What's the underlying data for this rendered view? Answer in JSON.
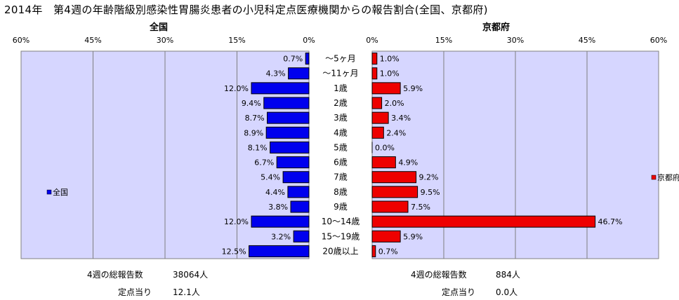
{
  "title": "2014年　第4週の年齢階級別感染性胃腸炎患者の小児科定点医療機関からの報告割合(全国、京都府)",
  "left_panel_title": "全国",
  "right_panel_title": "京都府",
  "colors": {
    "national": "#0000ee",
    "kyoto": "#ee0000",
    "plot_bg": "#d6d6ff",
    "grid": "#7f7f7f"
  },
  "chart_data": [
    {
      "type": "bar",
      "orientation": "horizontal",
      "direction": "right-to-left",
      "title": "全国",
      "series": [
        {
          "name": "全国",
          "values": [
            0.7,
            4.3,
            12.0,
            9.4,
            8.7,
            8.9,
            8.1,
            6.7,
            5.4,
            4.4,
            3.8,
            12.0,
            3.2,
            12.5
          ]
        }
      ],
      "categories": [
        "～5ヶ月",
        "～11ヶ月",
        "1歳",
        "2歳",
        "3歳",
        "4歳",
        "5歳",
        "6歳",
        "7歳",
        "8歳",
        "9歳",
        "10～14歳",
        "15～19歳",
        "20歳以上"
      ],
      "value_labels": [
        "0.7%",
        "4.3%",
        "12.0%",
        "9.4%",
        "8.7%",
        "8.9%",
        "8.1%",
        "6.7%",
        "5.4%",
        "4.4%",
        "3.8%",
        "12.0%",
        "3.2%",
        "12.5%"
      ],
      "xlim": [
        0,
        60
      ],
      "xticks": [
        "60%",
        "45%",
        "30%",
        "15%",
        "0%"
      ],
      "grid": true,
      "legend": "left"
    },
    {
      "type": "bar",
      "orientation": "horizontal",
      "direction": "left-to-right",
      "title": "京都府",
      "series": [
        {
          "name": "京都府",
          "values": [
            1.0,
            1.0,
            5.9,
            2.0,
            3.4,
            2.4,
            0.0,
            4.9,
            9.2,
            9.5,
            7.5,
            46.7,
            5.9,
            0.7
          ]
        }
      ],
      "categories": [
        "～5ヶ月",
        "～11ヶ月",
        "1歳",
        "2歳",
        "3歳",
        "4歳",
        "5歳",
        "6歳",
        "7歳",
        "8歳",
        "9歳",
        "10～14歳",
        "15～19歳",
        "20歳以上"
      ],
      "value_labels": [
        "1.0%",
        "1.0%",
        "5.9%",
        "2.0%",
        "3.4%",
        "2.4%",
        "0.0%",
        "4.9%",
        "9.2%",
        "9.5%",
        "7.5%",
        "46.7%",
        "5.9%",
        "0.7%"
      ],
      "xlim": [
        0,
        60
      ],
      "xticks": [
        "0%",
        "15%",
        "30%",
        "45%",
        "60%"
      ],
      "grid": true,
      "legend": "right"
    }
  ],
  "footer": {
    "left_total_label": "4週の総報告数",
    "left_total_value": "38064人",
    "left_per_label": "定点当り",
    "left_per_value": "12.1人",
    "right_total_label": "4週の総報告数",
    "right_total_value": "884人",
    "right_per_label": "定点当り",
    "right_per_value": "0.0人"
  }
}
